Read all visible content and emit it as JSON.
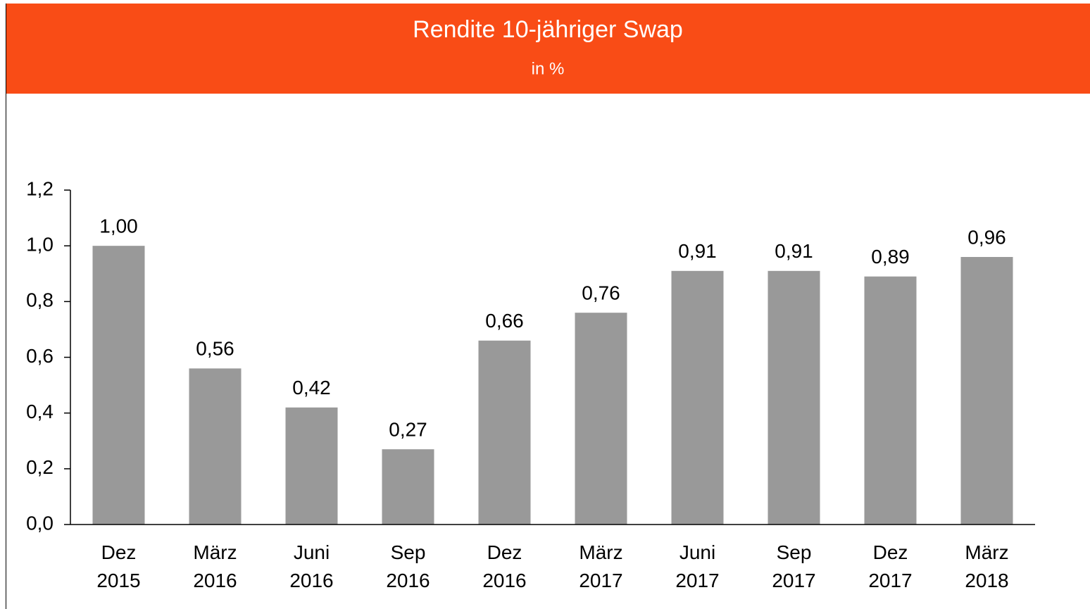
{
  "chart_data": {
    "type": "bar",
    "title": "Rendite 10-jähriger Swap",
    "subtitle": "in %",
    "categories": [
      "Dez 2015",
      "März 2016",
      "Juni 2016",
      "Sep 2016",
      "Dez 2016",
      "März 2017",
      "Juni 2017",
      "Sep 2017",
      "Dez 2017",
      "März 2018"
    ],
    "values": [
      1.0,
      0.56,
      0.42,
      0.27,
      0.66,
      0.76,
      0.91,
      0.91,
      0.89,
      0.96
    ],
    "value_labels": [
      "1,00",
      "0,56",
      "0,42",
      "0,27",
      "0,66",
      "0,76",
      "0,91",
      "0,91",
      "0,89",
      "0,96"
    ],
    "color": "#999999",
    "header_color": "#f94c16",
    "ylim": [
      0,
      1.2
    ],
    "yticks": [
      {
        "value": 0,
        "label": "0,0"
      },
      {
        "value": 0.2,
        "label": "0,2"
      },
      {
        "value": 0.4,
        "label": "0,4"
      },
      {
        "value": 0.6,
        "label": "0,6"
      },
      {
        "value": 0.8,
        "label": "0,8"
      },
      {
        "value": 1.0,
        "label": "1,0"
      },
      {
        "value": 1.2,
        "label": "1,2"
      }
    ],
    "grid": false
  }
}
